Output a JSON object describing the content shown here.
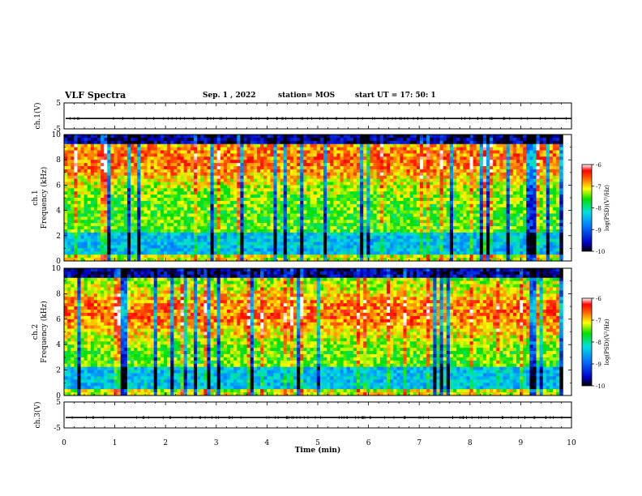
{
  "header": {
    "title": "VLF Spectra",
    "date": "Sep. 1 , 2022",
    "station": "station= MOS",
    "start_ut": "start  UT =   17: 50: 1"
  },
  "chart_data": [
    {
      "type": "line",
      "name": "ch1-waveform",
      "ylabel": "ch.1(V)",
      "ylim": [
        -5,
        5
      ],
      "yticks": [
        "5",
        "-5"
      ],
      "xlim": [
        0,
        10
      ],
      "baseline_value": -1
    },
    {
      "type": "heatmap",
      "name": "ch1-spectrogram",
      "ylabel": "ch.1 Frequency (kHz)",
      "ylim": [
        0,
        10
      ],
      "yticks": [
        "0",
        "2",
        "4",
        "6",
        "8",
        "10"
      ],
      "xlim": [
        0,
        10
      ],
      "data_extent_min": 9.83,
      "band_peak_khz": 8,
      "colorbar": {
        "label": "log(PSD)(V²/Hz)",
        "ticks": [
          "-6",
          "-7",
          "-8",
          "-9",
          "-10"
        ],
        "range": [
          -10,
          -6
        ]
      }
    },
    {
      "type": "heatmap",
      "name": "ch2-spectrogram",
      "ylabel": "ch.2 Frequency (kHz)",
      "ylim": [
        0,
        10
      ],
      "yticks": [
        "0",
        "2",
        "4",
        "6",
        "8",
        "10"
      ],
      "xlim": [
        0,
        10
      ],
      "data_extent_min": 9.83,
      "band_peak_khz": 6.5,
      "colorbar": {
        "label": "log(PSD)(V²/Hz)",
        "ticks": [
          "-6",
          "-7",
          "-8",
          "-9",
          "-10"
        ],
        "range": [
          -10,
          -6
        ]
      }
    },
    {
      "type": "line",
      "name": "ch3-waveform",
      "ylabel": "ch.3(V)",
      "ylim": [
        -5,
        5
      ],
      "yticks": [
        "5",
        "-5"
      ],
      "xlim": [
        0,
        10
      ],
      "baseline_value": -1
    }
  ],
  "x_axis": {
    "label": "Time  (min)",
    "ticks": [
      "0",
      "1",
      "2",
      "3",
      "4",
      "5",
      "6",
      "7",
      "8",
      "9",
      "10"
    ],
    "range": [
      0,
      10
    ]
  }
}
